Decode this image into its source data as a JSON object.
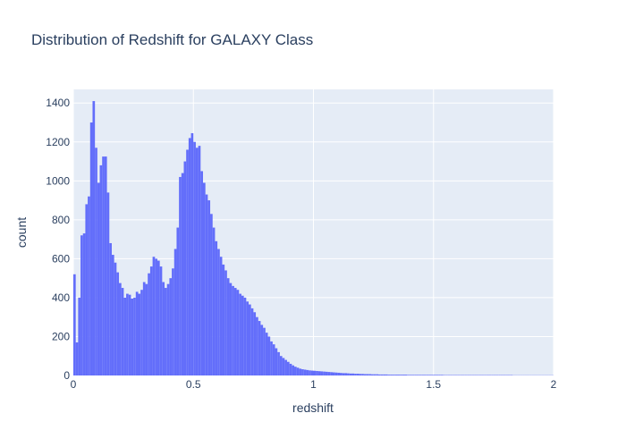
{
  "chart_data": {
    "type": "bar",
    "title": "Distribution of Redshift for GALAXY Class",
    "xlabel": "redshift",
    "ylabel": "count",
    "xlim": [
      0,
      2
    ],
    "ylim": [
      0,
      1470
    ],
    "bin_width": 0.01,
    "x_ticks": [
      0,
      0.5,
      1,
      1.5,
      2
    ],
    "x_tick_labels": [
      "0",
      "0.5",
      "1",
      "1.5",
      "2"
    ],
    "y_ticks": [
      0,
      200,
      400,
      600,
      800,
      1000,
      1200,
      1400
    ],
    "y_tick_labels": [
      "0",
      "200",
      "400",
      "600",
      "800",
      "1000",
      "1200",
      "1400"
    ],
    "bar_color": "#636efa",
    "plot_bg": "#e5ecf6",
    "grid": true,
    "bins_start": [
      0,
      0.01,
      0.02,
      0.03,
      0.04,
      0.05,
      0.06,
      0.07,
      0.08,
      0.09,
      0.1,
      0.11,
      0.12,
      0.13,
      0.14,
      0.15,
      0.16,
      0.17,
      0.18,
      0.19,
      0.2,
      0.21,
      0.22,
      0.23,
      0.24,
      0.25,
      0.26,
      0.27,
      0.28,
      0.29,
      0.3,
      0.31,
      0.32,
      0.33,
      0.34,
      0.35,
      0.36,
      0.37,
      0.38,
      0.39,
      0.4,
      0.41,
      0.42,
      0.43,
      0.44,
      0.45,
      0.46,
      0.47,
      0.48,
      0.49,
      0.5,
      0.51,
      0.52,
      0.53,
      0.54,
      0.55,
      0.56,
      0.57,
      0.58,
      0.59,
      0.6,
      0.61,
      0.62,
      0.63,
      0.64,
      0.65,
      0.66,
      0.67,
      0.68,
      0.69,
      0.7,
      0.71,
      0.72,
      0.73,
      0.74,
      0.75,
      0.76,
      0.77,
      0.78,
      0.79,
      0.8,
      0.81,
      0.82,
      0.83,
      0.84,
      0.85,
      0.86,
      0.87,
      0.88,
      0.89,
      0.9,
      0.91,
      0.92,
      0.93,
      0.94,
      0.95,
      0.96,
      0.97,
      0.98,
      0.99,
      1.0,
      1.01,
      1.02,
      1.03,
      1.04,
      1.05,
      1.06,
      1.07,
      1.08,
      1.09,
      1.1,
      1.11,
      1.12,
      1.13,
      1.14,
      1.15,
      1.16,
      1.17,
      1.18,
      1.19,
      1.2,
      1.21,
      1.22,
      1.23,
      1.24,
      1.25,
      1.26,
      1.27,
      1.28,
      1.29,
      1.3,
      1.31,
      1.32,
      1.33,
      1.34,
      1.35,
      1.36,
      1.37,
      1.38,
      1.39,
      1.4,
      1.41,
      1.42,
      1.43,
      1.44,
      1.45,
      1.46,
      1.47,
      1.48,
      1.49,
      1.5,
      1.51,
      1.52,
      1.53,
      1.54,
      1.55,
      1.56,
      1.57,
      1.58,
      1.59,
      1.6,
      1.61,
      1.62,
      1.63,
      1.64,
      1.65,
      1.66,
      1.67,
      1.68,
      1.69,
      1.7,
      1.71,
      1.72,
      1.73,
      1.74,
      1.75,
      1.76,
      1.77,
      1.78,
      1.79,
      1.8,
      1.81,
      1.82,
      1.83,
      1.84,
      1.85,
      1.86,
      1.87,
      1.88,
      1.89,
      1.9,
      1.91,
      1.92,
      1.93,
      1.94,
      1.95,
      1.96,
      1.97,
      1.98,
      1.99
    ],
    "counts": [
      520,
      170,
      400,
      720,
      730,
      880,
      920,
      1300,
      1410,
      1170,
      990,
      1080,
      1125,
      1125,
      940,
      680,
      620,
      580,
      530,
      475,
      450,
      400,
      420,
      415,
      395,
      400,
      430,
      420,
      440,
      480,
      470,
      525,
      560,
      610,
      600,
      590,
      560,
      480,
      450,
      470,
      500,
      550,
      650,
      760,
      1020,
      1040,
      1100,
      1160,
      1220,
      1245,
      1200,
      1170,
      1180,
      1050,
      990,
      930,
      900,
      830,
      760,
      690,
      650,
      610,
      570,
      540,
      500,
      475,
      460,
      450,
      440,
      420,
      410,
      400,
      380,
      365,
      345,
      325,
      300,
      280,
      260,
      245,
      220,
      200,
      175,
      160,
      140,
      120,
      100,
      90,
      80,
      70,
      60,
      52,
      45,
      40,
      35,
      32,
      30,
      28,
      26,
      25,
      24,
      23,
      22,
      21,
      20,
      19,
      18,
      17,
      16,
      15,
      14,
      13,
      12,
      12,
      11,
      10,
      10,
      9,
      9,
      8,
      8,
      7,
      7,
      7,
      6,
      6,
      6,
      5,
      5,
      5,
      5,
      4,
      4,
      4,
      4,
      4,
      4,
      4,
      4,
      3,
      3,
      3,
      3,
      3,
      3,
      3,
      3,
      3,
      3,
      3,
      3,
      3,
      3,
      3,
      2,
      2,
      2,
      2,
      2,
      2,
      2,
      2,
      2,
      2,
      2,
      2,
      2,
      2,
      2,
      2,
      2,
      2,
      2,
      2,
      2,
      2,
      2,
      2,
      2,
      2,
      2,
      2,
      2,
      1,
      1,
      1,
      1,
      1,
      1,
      1,
      1,
      1,
      1,
      1,
      1,
      1,
      1,
      1,
      1,
      1,
      1,
      1,
      1,
      1,
      1,
      1,
      1,
      1,
      1,
      1,
      1,
      1,
      1,
      1,
      1
    ]
  }
}
